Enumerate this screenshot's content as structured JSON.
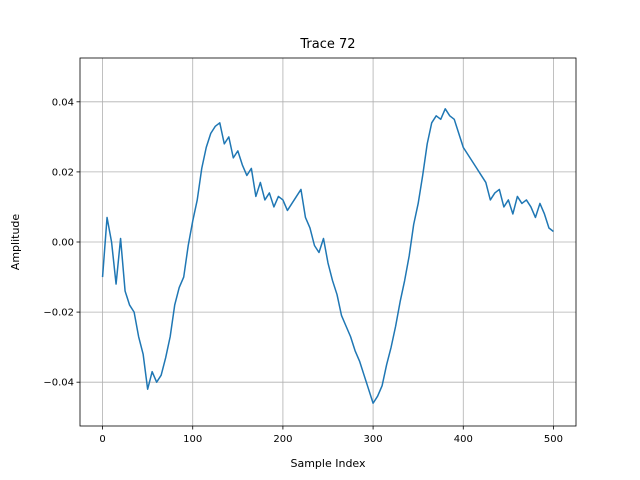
{
  "chart_data": {
    "type": "line",
    "title": "Trace 72",
    "xlabel": "Sample Index",
    "ylabel": "Amplitude",
    "xlim": [
      -25,
      525
    ],
    "ylim": [
      -0.0525,
      0.0525
    ],
    "xticks": [
      0,
      100,
      200,
      300,
      400,
      500
    ],
    "yticks": [
      -0.04,
      -0.02,
      0.0,
      0.02,
      0.04
    ],
    "xtick_labels": [
      "0",
      "100",
      "200",
      "300",
      "400",
      "500"
    ],
    "ytick_labels": [
      "−0.04",
      "−0.02",
      "0.00",
      "0.02",
      "0.04"
    ],
    "grid": true,
    "series": [
      {
        "color": "#1f77b4",
        "x": [
          0,
          5,
          10,
          15,
          20,
          25,
          30,
          35,
          40,
          45,
          50,
          55,
          60,
          65,
          70,
          75,
          80,
          85,
          90,
          95,
          100,
          105,
          110,
          115,
          120,
          125,
          130,
          135,
          140,
          145,
          150,
          155,
          160,
          165,
          170,
          175,
          180,
          185,
          190,
          195,
          200,
          205,
          210,
          215,
          220,
          225,
          230,
          235,
          240,
          245,
          250,
          255,
          260,
          265,
          270,
          275,
          280,
          285,
          290,
          295,
          300,
          305,
          310,
          315,
          320,
          325,
          330,
          335,
          340,
          345,
          350,
          355,
          360,
          365,
          370,
          375,
          380,
          385,
          390,
          395,
          400,
          405,
          410,
          415,
          420,
          425,
          430,
          435,
          440,
          445,
          450,
          455,
          460,
          465,
          470,
          475,
          480,
          485,
          490,
          495,
          500
        ],
        "y": [
          -0.01,
          0.007,
          0.0,
          -0.012,
          0.001,
          -0.014,
          -0.018,
          -0.02,
          -0.027,
          -0.032,
          -0.042,
          -0.037,
          -0.04,
          -0.038,
          -0.033,
          -0.027,
          -0.018,
          -0.013,
          -0.01,
          -0.001,
          0.006,
          0.012,
          0.021,
          0.027,
          0.031,
          0.033,
          0.034,
          0.028,
          0.03,
          0.024,
          0.026,
          0.022,
          0.019,
          0.021,
          0.013,
          0.017,
          0.012,
          0.014,
          0.01,
          0.013,
          0.012,
          0.009,
          0.011,
          0.013,
          0.015,
          0.007,
          0.004,
          -0.001,
          -0.003,
          0.001,
          -0.006,
          -0.011,
          -0.015,
          -0.021,
          -0.024,
          -0.027,
          -0.031,
          -0.034,
          -0.038,
          -0.042,
          -0.046,
          -0.044,
          -0.041,
          -0.035,
          -0.03,
          -0.024,
          -0.017,
          -0.011,
          -0.004,
          0.005,
          0.011,
          0.019,
          0.028,
          0.034,
          0.036,
          0.035,
          0.038,
          0.036,
          0.035,
          0.031,
          0.027,
          0.025,
          0.023,
          0.021,
          0.019,
          0.017,
          0.012,
          0.014,
          0.015,
          0.01,
          0.012,
          0.008,
          0.013,
          0.011,
          0.012,
          0.01,
          0.007,
          0.011,
          0.008,
          0.004,
          0.003
        ]
      }
    ]
  }
}
